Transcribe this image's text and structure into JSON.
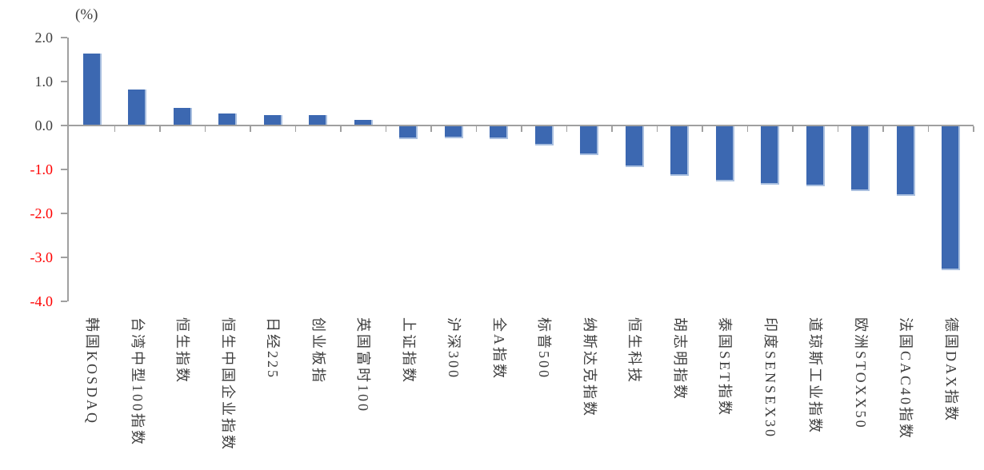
{
  "chart_data": {
    "type": "bar",
    "title": "",
    "unit_label": "(%)",
    "categories": [
      "韩国KOSDAQ",
      "台湾中型100指数",
      "恒生指数",
      "恒生中国企业指数",
      "日经225",
      "创业板指",
      "英国富时100",
      "上证指数",
      "沪深300",
      "全A指数",
      "标普500",
      "纳斯达克指数",
      "恒生科技",
      "胡志明指数",
      "泰国SET指数",
      "印度SENSEX30",
      "道琼斯工业指数",
      "欧洲STOXX50",
      "法国CAC40指数",
      "德国DAX指数"
    ],
    "values": [
      1.64,
      0.82,
      0.4,
      0.27,
      0.24,
      0.23,
      0.13,
      -0.29,
      -0.28,
      -0.29,
      -0.44,
      -0.65,
      -0.92,
      -1.12,
      -1.26,
      -1.33,
      -1.36,
      -1.48,
      -1.58,
      -3.28
    ],
    "ylim": [
      -4.0,
      2.0
    ],
    "ytick_step": 1.0,
    "yticks": [
      "2.0",
      "1.0",
      "0.0",
      "-1.0",
      "-2.0",
      "-3.0",
      "-4.0"
    ],
    "ytick_values": [
      2,
      1,
      0,
      -1,
      -2,
      -3,
      -4
    ],
    "xlabel": "",
    "ylabel": "",
    "grid": false,
    "legend": null,
    "bar_color": "#3c68b1",
    "bar_edge_color": "#a9bfdf",
    "axis_color": "#a0a0a0",
    "tick_label_color": "#404040",
    "negative_tick_label_color": "#ff0000",
    "category_label_color": "#3f3f3f"
  }
}
